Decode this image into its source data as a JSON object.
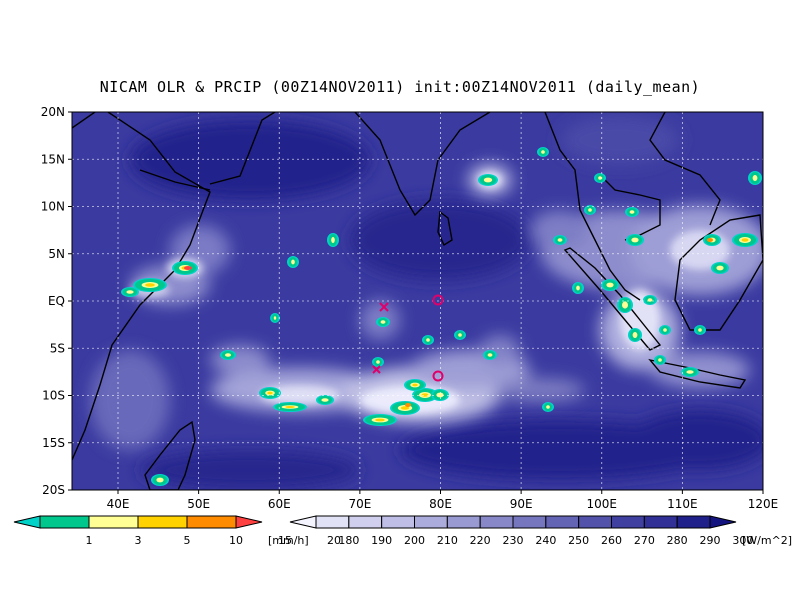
{
  "title": "NICAM OLR & PRCIP (00Z14NOV2011) init:00Z14NOV2011 (daily_mean)",
  "lat_labels": [
    "20N",
    "15N",
    "10N",
    "5N",
    "EQ",
    "5S",
    "10S",
    "15S",
    "20S"
  ],
  "lon_labels": [
    "40E",
    "50E",
    "60E",
    "70E",
    "80E",
    "90E",
    "100E",
    "110E",
    "120E"
  ],
  "precip_scale": {
    "unit": "[mm/h]",
    "ticks": [
      "1",
      "3",
      "5",
      "10",
      "15",
      "20"
    ],
    "colors": [
      "#00d2c8",
      "#00c88c",
      "#ffff96",
      "#ffd200",
      "#ff8c00",
      "#ff4040"
    ]
  },
  "olr_scale": {
    "unit": "[W/m^2]",
    "ticks": [
      "180",
      "190",
      "200",
      "210",
      "220",
      "230",
      "240",
      "250",
      "260",
      "270",
      "280",
      "290",
      "300"
    ],
    "colors": [
      "#f4f4ff",
      "#e2e2f6",
      "#d0d0ee",
      "#bebee6",
      "#acacdc",
      "#9a9ad2",
      "#8888c8",
      "#7676be",
      "#6464b4",
      "#5252aa",
      "#4040a0",
      "#303096",
      "#20208a",
      "#141480"
    ]
  },
  "colors": {
    "ocean": "#3a3aa0",
    "deep": "#20208a",
    "coast": "#000000",
    "marker": "#e0006a"
  }
}
